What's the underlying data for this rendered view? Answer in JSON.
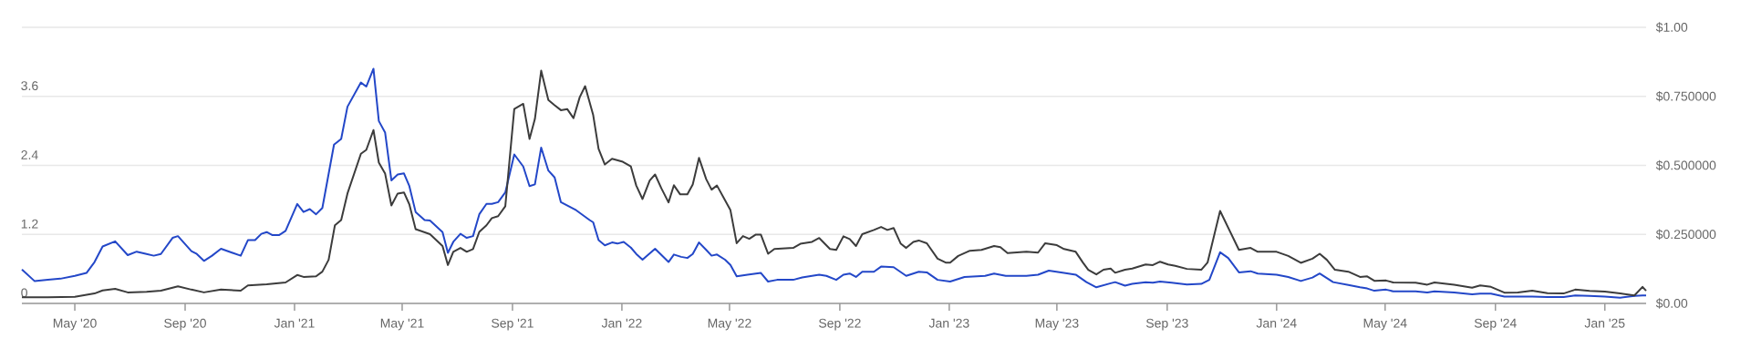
{
  "chart_data": {
    "type": "line",
    "xlim": [
      "2020-03-03",
      "2025-02-16"
    ],
    "xticks": [
      {
        "value": "2020-05-01",
        "label": "May '20"
      },
      {
        "value": "2020-09-01",
        "label": "Sep '20"
      },
      {
        "value": "2021-01-01",
        "label": "Jan '21"
      },
      {
        "value": "2021-05-01",
        "label": "May '21"
      },
      {
        "value": "2021-09-01",
        "label": "Sep '21"
      },
      {
        "value": "2022-01-01",
        "label": "Jan '22"
      },
      {
        "value": "2022-05-01",
        "label": "May '22"
      },
      {
        "value": "2022-09-01",
        "label": "Sep '22"
      },
      {
        "value": "2023-01-01",
        "label": "Jan '23"
      },
      {
        "value": "2023-05-01",
        "label": "May '23"
      },
      {
        "value": "2023-09-01",
        "label": "Sep '23"
      },
      {
        "value": "2024-01-01",
        "label": "Jan '24"
      },
      {
        "value": "2024-05-01",
        "label": "May '24"
      },
      {
        "value": "2024-09-01",
        "label": "Sep '24"
      },
      {
        "value": "2025-01-01",
        "label": "Jan '25"
      }
    ],
    "ylim": [
      0,
      4.8
    ],
    "yticks": [
      0,
      1.2,
      2.4,
      3.6,
      {
        "value": 4.8,
        "label": null
      }
    ],
    "y2lim": [
      0,
      1
    ],
    "y2ticks": [
      {
        "value": 0,
        "label": "$0.00"
      },
      {
        "value": 0.25,
        "label": "$0.250000"
      },
      {
        "value": 0.5,
        "label": "$0.500000"
      },
      {
        "value": 0.75,
        "label": "$0.750000"
      },
      {
        "value": 1,
        "label": "$1.00"
      }
    ],
    "grid": "y",
    "series": [
      {
        "color": "#2347c8",
        "x": [
          "2020-03-03",
          "2020-03-17",
          "2020-04-01",
          "2020-04-15",
          "2020-05-01",
          "2020-05-14",
          "2020-05-23",
          "2020-06-01",
          "2020-06-15",
          "2020-06-29",
          "2020-07-09",
          "2020-07-20",
          "2020-07-28",
          "2020-08-05",
          "2020-08-18",
          "2020-08-24",
          "2020-09-08",
          "2020-09-14",
          "2020-09-22",
          "2020-10-01",
          "2020-10-11",
          "2020-11-02",
          "2020-11-10",
          "2020-11-18",
          "2020-11-25",
          "2020-12-01",
          "2020-12-07",
          "2020-12-15",
          "2020-12-22",
          "2021-01-04",
          "2021-01-11",
          "2021-01-18",
          "2021-01-25",
          "2021-02-01",
          "2021-02-14",
          "2021-02-22",
          "2021-03-01",
          "2021-03-16",
          "2021-03-22",
          "2021-03-30",
          "2021-04-05",
          "2021-04-12",
          "2021-04-19",
          "2021-04-26",
          "2021-05-03",
          "2021-05-09",
          "2021-05-16",
          "2021-05-26",
          "2021-06-01",
          "2021-06-15",
          "2021-06-21",
          "2021-06-27",
          "2021-07-05",
          "2021-07-12",
          "2021-07-19",
          "2021-07-26",
          "2021-08-03",
          "2021-08-09",
          "2021-08-16",
          "2021-08-24",
          "2021-09-03",
          "2021-09-13",
          "2021-09-20",
          "2021-09-26",
          "2021-10-03",
          "2021-10-11",
          "2021-10-18",
          "2021-10-25",
          "2021-11-11",
          "2021-11-26",
          "2021-11-30",
          "2021-12-06",
          "2021-12-13",
          "2021-12-21",
          "2021-12-27",
          "2022-01-03",
          "2022-01-11",
          "2022-01-17",
          "2022-01-24",
          "2022-02-07",
          "2022-02-22",
          "2022-02-28",
          "2022-03-08",
          "2022-03-15",
          "2022-03-21",
          "2022-03-28",
          "2022-04-05",
          "2022-04-11",
          "2022-04-17",
          "2022-04-26",
          "2022-05-02",
          "2022-05-09",
          "2022-05-21",
          "2022-06-05",
          "2022-06-13",
          "2022-06-23",
          "2022-07-11",
          "2022-07-21",
          "2022-08-01",
          "2022-08-09",
          "2022-08-17",
          "2022-08-28",
          "2022-09-05",
          "2022-09-12",
          "2022-09-19",
          "2022-09-26",
          "2022-10-09",
          "2022-10-17",
          "2022-10-31",
          "2022-11-14",
          "2022-11-28",
          "2022-12-07",
          "2022-12-19",
          "2023-01-02",
          "2023-01-18",
          "2023-02-10",
          "2023-02-20",
          "2023-03-05",
          "2023-03-28",
          "2023-04-10",
          "2023-04-22",
          "2023-05-09",
          "2023-05-22",
          "2023-06-03",
          "2023-06-14",
          "2023-06-30",
          "2023-07-05",
          "2023-07-16",
          "2023-07-24",
          "2023-08-08",
          "2023-08-16",
          "2023-08-24",
          "2023-09-06",
          "2023-09-23",
          "2023-10-09",
          "2023-10-18",
          "2023-10-30",
          "2023-11-08",
          "2023-11-20",
          "2023-12-03",
          "2023-12-11",
          "2024-01-01",
          "2024-01-14",
          "2024-01-28",
          "2024-02-10",
          "2024-02-18",
          "2024-03-04",
          "2024-03-21",
          "2024-04-03",
          "2024-04-11",
          "2024-04-19",
          "2024-05-02",
          "2024-05-10",
          "2024-06-04",
          "2024-06-17",
          "2024-06-25",
          "2024-07-17",
          "2024-08-06",
          "2024-08-15",
          "2024-08-27",
          "2024-09-11",
          "2024-09-26",
          "2024-10-12",
          "2024-10-29",
          "2024-11-16",
          "2024-11-29",
          "2024-12-15",
          "2025-01-01",
          "2025-01-18",
          "2025-02-03",
          "2025-02-12",
          "2025-02-16"
        ],
        "values": [
          0.59,
          0.39,
          0.41,
          0.43,
          0.48,
          0.53,
          0.72,
          0.99,
          1.08,
          0.84,
          0.9,
          0.86,
          0.83,
          0.86,
          1.14,
          1.17,
          0.91,
          0.86,
          0.74,
          0.83,
          0.95,
          0.83,
          1.1,
          1.1,
          1.21,
          1.24,
          1.19,
          1.19,
          1.26,
          1.73,
          1.59,
          1.64,
          1.55,
          1.66,
          2.76,
          2.86,
          3.42,
          3.84,
          3.77,
          4.08,
          3.17,
          2.97,
          2.14,
          2.24,
          2.26,
          2.04,
          1.59,
          1.45,
          1.44,
          1.24,
          0.88,
          1.07,
          1.21,
          1.14,
          1.17,
          1.55,
          1.73,
          1.73,
          1.76,
          1.93,
          2.59,
          2.38,
          2.04,
          2.07,
          2.71,
          2.31,
          2.19,
          1.76,
          1.62,
          1.45,
          1.41,
          1.1,
          1.01,
          1.06,
          1.04,
          1.07,
          0.97,
          0.86,
          0.76,
          0.95,
          0.72,
          0.85,
          0.81,
          0.79,
          0.86,
          1.06,
          0.93,
          0.83,
          0.85,
          0.76,
          0.67,
          0.47,
          0.5,
          0.53,
          0.38,
          0.41,
          0.41,
          0.45,
          0.48,
          0.5,
          0.48,
          0.41,
          0.5,
          0.52,
          0.46,
          0.55,
          0.55,
          0.64,
          0.63,
          0.48,
          0.55,
          0.54,
          0.41,
          0.38,
          0.46,
          0.48,
          0.52,
          0.48,
          0.48,
          0.5,
          0.57,
          0.53,
          0.5,
          0.37,
          0.28,
          0.35,
          0.37,
          0.31,
          0.34,
          0.37,
          0.36,
          0.38,
          0.36,
          0.33,
          0.34,
          0.41,
          0.89,
          0.79,
          0.54,
          0.56,
          0.52,
          0.5,
          0.46,
          0.39,
          0.45,
          0.52,
          0.37,
          0.32,
          0.28,
          0.26,
          0.22,
          0.24,
          0.21,
          0.21,
          0.19,
          0.21,
          0.19,
          0.16,
          0.17,
          0.17,
          0.12,
          0.12,
          0.12,
          0.11,
          0.11,
          0.14,
          0.13,
          0.12,
          0.1,
          0.13,
          0.14,
          0.14
        ]
      },
      {
        "color": "#3c3c3c",
        "axis": "y2",
        "x": [
          "2020-03-03",
          "2020-04-01",
          "2020-05-01",
          "2020-05-23",
          "2020-06-01",
          "2020-06-15",
          "2020-06-29",
          "2020-07-20",
          "2020-08-05",
          "2020-08-24",
          "2020-09-08",
          "2020-09-22",
          "2020-10-11",
          "2020-11-02",
          "2020-11-10",
          "2020-12-01",
          "2020-12-22",
          "2021-01-04",
          "2021-01-11",
          "2021-01-25",
          "2021-02-01",
          "2021-02-08",
          "2021-02-15",
          "2021-02-22",
          "2021-03-01",
          "2021-03-16",
          "2021-03-22",
          "2021-03-30",
          "2021-04-05",
          "2021-04-12",
          "2021-04-19",
          "2021-04-26",
          "2021-05-03",
          "2021-05-09",
          "2021-05-16",
          "2021-06-01",
          "2021-06-15",
          "2021-06-21",
          "2021-06-27",
          "2021-07-05",
          "2021-07-12",
          "2021-07-19",
          "2021-07-26",
          "2021-08-03",
          "2021-08-09",
          "2021-08-16",
          "2021-08-24",
          "2021-09-03",
          "2021-09-13",
          "2021-09-20",
          "2021-09-26",
          "2021-10-03",
          "2021-10-11",
          "2021-10-18",
          "2021-10-25",
          "2021-11-01",
          "2021-11-08",
          "2021-11-15",
          "2021-11-21",
          "2021-11-30",
          "2021-12-06",
          "2021-12-13",
          "2021-12-21",
          "2022-01-02",
          "2022-01-11",
          "2022-01-17",
          "2022-01-24",
          "2022-02-01",
          "2022-02-07",
          "2022-02-14",
          "2022-02-22",
          "2022-02-28",
          "2022-03-07",
          "2022-03-15",
          "2022-03-21",
          "2022-03-28",
          "2022-04-05",
          "2022-04-11",
          "2022-04-17",
          "2022-04-26",
          "2022-05-02",
          "2022-05-09",
          "2022-05-16",
          "2022-05-23",
          "2022-05-30",
          "2022-06-05",
          "2022-06-13",
          "2022-06-20",
          "2022-07-11",
          "2022-07-19",
          "2022-08-01",
          "2022-08-09",
          "2022-08-21",
          "2022-08-28",
          "2022-09-05",
          "2022-09-12",
          "2022-09-19",
          "2022-09-26",
          "2022-10-09",
          "2022-10-17",
          "2022-10-24",
          "2022-10-31",
          "2022-11-08",
          "2022-11-14",
          "2022-11-22",
          "2022-11-28",
          "2022-12-07",
          "2022-12-19",
          "2022-12-28",
          "2023-01-02",
          "2023-01-11",
          "2023-01-24",
          "2023-02-06",
          "2023-02-20",
          "2023-02-27",
          "2023-03-07",
          "2023-03-28",
          "2023-04-10",
          "2023-04-18",
          "2023-05-01",
          "2023-05-09",
          "2023-05-22",
          "2023-05-30",
          "2023-06-05",
          "2023-06-14",
          "2023-06-22",
          "2023-06-30",
          "2023-07-05",
          "2023-07-16",
          "2023-07-24",
          "2023-08-08",
          "2023-08-16",
          "2023-08-24",
          "2023-09-02",
          "2023-09-10",
          "2023-09-23",
          "2023-10-09",
          "2023-10-16",
          "2023-10-30",
          "2023-11-20",
          "2023-12-03",
          "2023-12-11",
          "2024-01-01",
          "2024-01-14",
          "2024-01-28",
          "2024-02-10",
          "2024-02-18",
          "2024-02-26",
          "2024-03-06",
          "2024-03-21",
          "2024-04-03",
          "2024-04-11",
          "2024-04-19",
          "2024-05-02",
          "2024-05-10",
          "2024-06-04",
          "2024-06-17",
          "2024-06-25",
          "2024-07-17",
          "2024-08-06",
          "2024-08-15",
          "2024-08-27",
          "2024-09-11",
          "2024-09-26",
          "2024-10-12",
          "2024-10-29",
          "2024-11-16",
          "2024-11-29",
          "2024-12-15",
          "2025-01-01",
          "2025-01-18",
          "2025-02-03",
          "2025-02-12",
          "2025-02-16"
        ],
        "values": [
          0.022,
          0.022,
          0.024,
          0.036,
          0.047,
          0.053,
          0.04,
          0.042,
          0.046,
          0.062,
          0.05,
          0.04,
          0.05,
          0.046,
          0.065,
          0.069,
          0.076,
          0.103,
          0.096,
          0.098,
          0.115,
          0.158,
          0.283,
          0.302,
          0.398,
          0.542,
          0.556,
          0.628,
          0.51,
          0.47,
          0.355,
          0.398,
          0.402,
          0.359,
          0.269,
          0.251,
          0.208,
          0.139,
          0.187,
          0.201,
          0.187,
          0.197,
          0.259,
          0.283,
          0.309,
          0.316,
          0.352,
          0.704,
          0.723,
          0.596,
          0.668,
          0.843,
          0.737,
          0.718,
          0.7,
          0.704,
          0.671,
          0.747,
          0.787,
          0.682,
          0.56,
          0.503,
          0.524,
          0.513,
          0.496,
          0.427,
          0.378,
          0.445,
          0.467,
          0.417,
          0.366,
          0.428,
          0.395,
          0.395,
          0.431,
          0.527,
          0.45,
          0.412,
          0.427,
          0.374,
          0.338,
          0.218,
          0.244,
          0.234,
          0.249,
          0.249,
          0.18,
          0.197,
          0.201,
          0.216,
          0.223,
          0.237,
          0.197,
          0.194,
          0.243,
          0.233,
          0.208,
          0.251,
          0.266,
          0.277,
          0.266,
          0.273,
          0.216,
          0.201,
          0.223,
          0.228,
          0.218,
          0.162,
          0.148,
          0.148,
          0.172,
          0.191,
          0.194,
          0.208,
          0.204,
          0.182,
          0.187,
          0.184,
          0.218,
          0.211,
          0.197,
          0.187,
          0.148,
          0.122,
          0.105,
          0.122,
          0.126,
          0.111,
          0.122,
          0.126,
          0.141,
          0.139,
          0.151,
          0.141,
          0.136,
          0.125,
          0.122,
          0.148,
          0.335,
          0.194,
          0.201,
          0.187,
          0.187,
          0.172,
          0.147,
          0.162,
          0.18,
          0.158,
          0.122,
          0.115,
          0.096,
          0.098,
          0.082,
          0.083,
          0.076,
          0.075,
          0.068,
          0.076,
          0.068,
          0.057,
          0.065,
          0.06,
          0.039,
          0.04,
          0.046,
          0.037,
          0.036,
          0.05,
          0.045,
          0.043,
          0.036,
          0.029,
          0.06,
          0.046
        ]
      }
    ]
  }
}
